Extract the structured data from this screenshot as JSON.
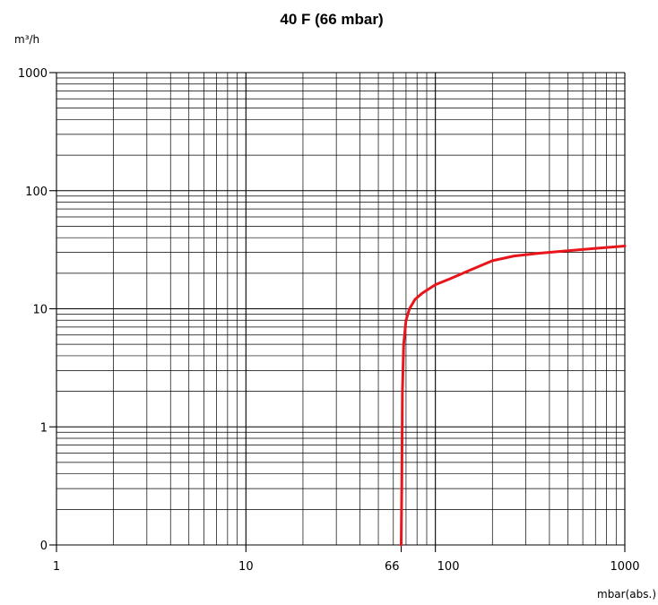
{
  "chart_data": {
    "type": "line",
    "title": "40 F (66 mbar)",
    "ylabel": "m³/h",
    "xlabel": "mbar(abs.)",
    "x_scale": "log",
    "y_scale": "log",
    "xlim": [
      1,
      1000
    ],
    "ylim_labels": [
      "0",
      "1",
      "10",
      "100",
      "1000"
    ],
    "x_tick_labels": [
      "1",
      "10",
      "66",
      "100",
      "1000"
    ],
    "x_ticks": [
      1,
      10,
      66,
      100,
      1000
    ],
    "grid": true,
    "series": [
      {
        "color": "#e8151b",
        "x": [
          66,
          66.5,
          67,
          68,
          70,
          73,
          78,
          85,
          100,
          120,
          150,
          200,
          260,
          350,
          500,
          700,
          1000
        ],
        "y": [
          0,
          0.5,
          2,
          5,
          8,
          10,
          12,
          13.5,
          16,
          18,
          21,
          25.5,
          28,
          29.5,
          31,
          32.5,
          34
        ]
      }
    ]
  }
}
